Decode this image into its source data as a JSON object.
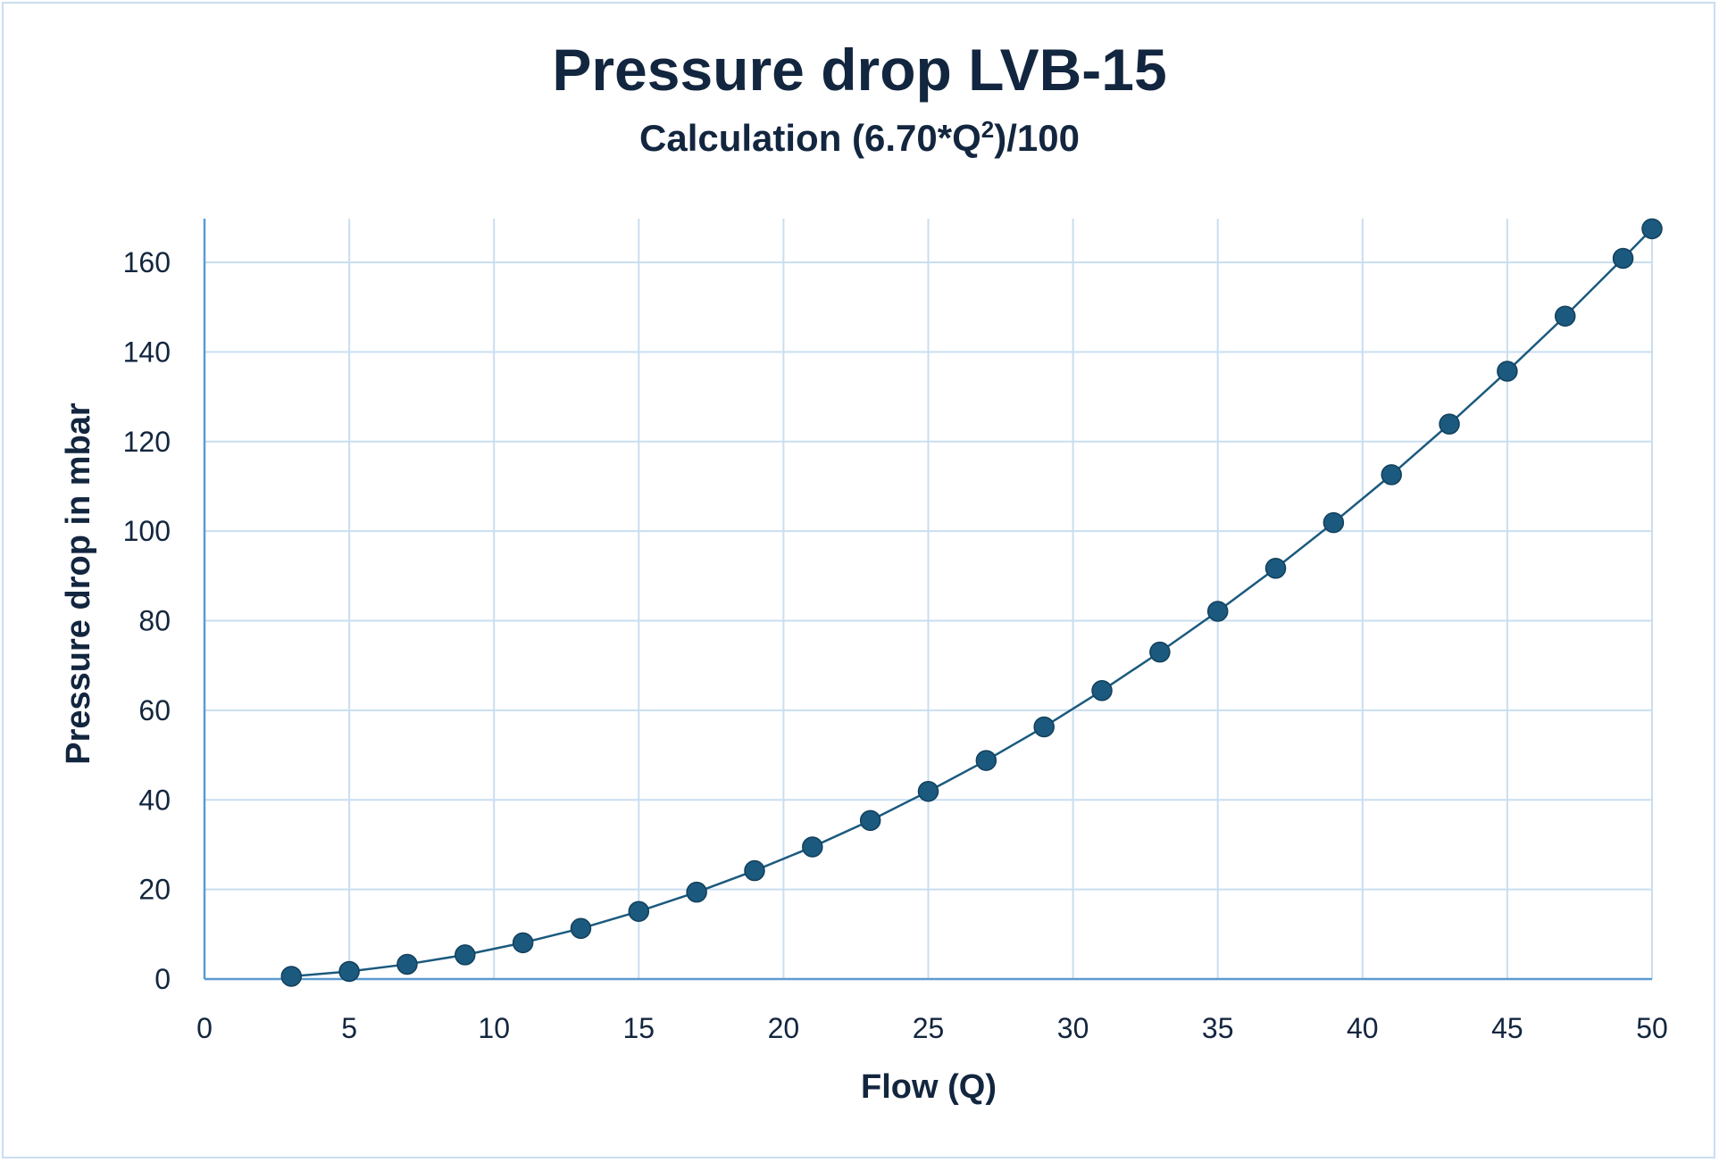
{
  "chart_data": {
    "type": "line",
    "title": "Pressure drop LVB-15",
    "subtitle_prefix": "Calculation (6.70*Q",
    "subtitle_sup": "2",
    "subtitle_suffix": ")/100",
    "xlabel": "Flow (Q)",
    "ylabel": "Pressure drop in mbar",
    "xlim": [
      0,
      50
    ],
    "ylim": [
      0,
      170
    ],
    "xticks": [
      0,
      5,
      10,
      15,
      20,
      25,
      30,
      35,
      40,
      45,
      50
    ],
    "yticks": [
      0,
      20,
      40,
      60,
      80,
      100,
      120,
      140,
      160
    ],
    "grid": true,
    "line_color": "#1b5a7e",
    "marker_color": "#1b5a7e",
    "grid_color": "#c9def0",
    "series": [
      {
        "x": [
          3,
          5,
          7,
          9,
          11,
          13,
          15,
          17,
          19,
          21,
          23,
          25,
          27,
          29,
          31,
          33,
          35,
          37,
          39,
          41,
          43,
          45,
          47,
          49,
          50
        ],
        "y": [
          0.6,
          1.7,
          3.3,
          5.4,
          8.1,
          11.3,
          15.1,
          19.4,
          24.2,
          29.5,
          35.4,
          41.9,
          48.8,
          56.3,
          64.4,
          73.0,
          82.1,
          91.7,
          101.9,
          112.6,
          123.9,
          135.7,
          148.0,
          160.9,
          167.5
        ]
      }
    ]
  }
}
